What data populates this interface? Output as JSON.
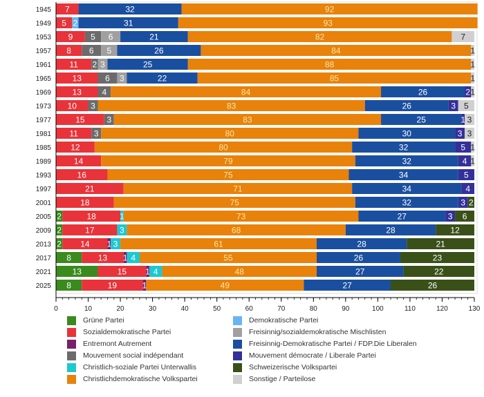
{
  "chart_data": {
    "type": "bar",
    "orientation": "horizontal",
    "stacked": true,
    "title": "",
    "xlabel": "",
    "ylabel": "",
    "xlim": [
      0,
      130
    ],
    "x_ticks": [
      0,
      10,
      20,
      30,
      40,
      50,
      60,
      70,
      80,
      90,
      100,
      110,
      120,
      130
    ],
    "grid": false,
    "legend_position": "bottom",
    "categories": [
      "1945",
      "1949",
      "1953",
      "1957",
      "1961",
      "1965",
      "1969",
      "1973",
      "1977",
      "1981",
      "1985",
      "1989",
      "1993",
      "1997",
      "2001",
      "2005",
      "2009",
      "2013",
      "2017",
      "2021",
      "2025"
    ],
    "series": [
      {
        "name": "Grüne Partei",
        "color": "#3a8a1e",
        "label_color": "#ffffff",
        "values": [
          0,
          0,
          0,
          0,
          0,
          0,
          0,
          0,
          0,
          0,
          0,
          0,
          0,
          0,
          0,
          2,
          2,
          2,
          8,
          13,
          8
        ]
      },
      {
        "name": "Sozialdemokratische Partei",
        "color": "#e8333a",
        "label_color": "#ffffff",
        "values": [
          7,
          5,
          9,
          8,
          11,
          13,
          13,
          10,
          15,
          11,
          12,
          14,
          16,
          21,
          18,
          18,
          17,
          14,
          13,
          15,
          19
        ]
      },
      {
        "name": "Entremont Autrement",
        "color": "#7a1f6a",
        "label_color": "#ffffff",
        "values": [
          0,
          0,
          0,
          0,
          0,
          0,
          0,
          0,
          0,
          0,
          0,
          0,
          0,
          0,
          0,
          0,
          0,
          1,
          1,
          1,
          1
        ]
      },
      {
        "name": "Demokratische Partei",
        "color": "#6bb4f2",
        "label_color": "#ffffff",
        "values": [
          0,
          2,
          0,
          0,
          0,
          0,
          0,
          0,
          0,
          0,
          0,
          0,
          0,
          0,
          0,
          0,
          0,
          0,
          0,
          0,
          0
        ]
      },
      {
        "name": "Mouvement social indépendant",
        "color": "#6b6b6b",
        "label_color": "#ffffff",
        "values": [
          0,
          0,
          5,
          6,
          2,
          6,
          4,
          3,
          3,
          3,
          0,
          0,
          0,
          0,
          0,
          0,
          0,
          0,
          0,
          0,
          0
        ]
      },
      {
        "name": "Freisinnig/sozialdemokratische Mischlisten",
        "color": "#a0a0a0",
        "label_color": "#ffffff",
        "values": [
          0,
          0,
          6,
          5,
          3,
          3,
          0,
          0,
          0,
          0,
          0,
          0,
          0,
          0,
          0,
          0,
          0,
          0,
          0,
          0,
          0
        ]
      },
      {
        "name": "Christlich-soziale Partei Unterwallis",
        "color": "#1ec8d0",
        "label_color": "#ffffff",
        "values": [
          0,
          0,
          0,
          0,
          0,
          0,
          0,
          0,
          0,
          0,
          0,
          0,
          0,
          0,
          0,
          1,
          3,
          3,
          4,
          4,
          0
        ]
      },
      {
        "name": "Freisinnig-Demokratische Partei / FDP.Die Liberalen (links)",
        "color": "#1a4fa0",
        "label_color": "#ffffff",
        "values": [
          32,
          31,
          21,
          26,
          25,
          22,
          0,
          0,
          0,
          0,
          0,
          0,
          0,
          0,
          0,
          0,
          0,
          0,
          0,
          0,
          0
        ]
      },
      {
        "name": "Christlichdemokratische Volkspartei",
        "color": "#e8820a",
        "label_color": "#fbe6a6",
        "values": [
          92,
          93,
          82,
          84,
          88,
          85,
          84,
          83,
          83,
          80,
          80,
          79,
          75,
          71,
          75,
          73,
          68,
          61,
          55,
          48,
          49
        ]
      },
      {
        "name": "Freisinnig-Demokratische Partei / FDP.Die Liberalen",
        "color": "#1a4fa0",
        "label_color": "#ffffff",
        "values": [
          0,
          0,
          0,
          0,
          0,
          0,
          26,
          26,
          25,
          30,
          32,
          32,
          34,
          34,
          32,
          27,
          28,
          28,
          26,
          27,
          27
        ]
      },
      {
        "name": "Mouvement démocrate / Liberale Partei",
        "color": "#33309a",
        "label_color": "#ffffff",
        "values": [
          0,
          0,
          0,
          0,
          0,
          0,
          2,
          3,
          1,
          3,
          5,
          4,
          5,
          4,
          3,
          3,
          0,
          0,
          0,
          0,
          0
        ]
      },
      {
        "name": "Schweizerische Volkspartei",
        "color": "#3a5019",
        "label_color": "#ffffff",
        "values": [
          0,
          0,
          0,
          0,
          0,
          0,
          0,
          0,
          0,
          0,
          0,
          0,
          0,
          0,
          2,
          6,
          12,
          21,
          23,
          22,
          26
        ]
      },
      {
        "name": "Sonstige / Parteilose",
        "color": "#d0d0d0",
        "label_color": "#222222",
        "values": [
          0,
          0,
          7,
          1,
          1,
          1,
          1,
          5,
          3,
          3,
          1,
          1,
          0,
          0,
          0,
          0,
          0,
          0,
          0,
          0,
          0
        ]
      }
    ],
    "legend": [
      {
        "name": "Grüne Partei",
        "color": "#3a8a1e"
      },
      {
        "name": "Sozialdemokratische Partei",
        "color": "#e8333a"
      },
      {
        "name": "Entremont Autrement",
        "color": "#7a1f6a"
      },
      {
        "name": "Mouvement social indépendant",
        "color": "#6b6b6b"
      },
      {
        "name": "Christlich-soziale Partei Unterwallis",
        "color": "#1ec8d0"
      },
      {
        "name": "Christlichdemokratische Volkspartei",
        "color": "#e8820a"
      },
      {
        "name": "Demokratische Partei",
        "color": "#6bb4f2"
      },
      {
        "name": "Freisinnig/sozialdemokratische Mischlisten",
        "color": "#a0a0a0"
      },
      {
        "name": "Freisinnig-Demokratische Partei / FDP.Die Liberalen",
        "color": "#1a4fa0"
      },
      {
        "name": "Mouvement démocrate / Liberale Partei",
        "color": "#33309a"
      },
      {
        "name": "Schweizerische Volkspartei",
        "color": "#3a5019"
      },
      {
        "name": "Sonstige / Parteilose",
        "color": "#d0d0d0"
      }
    ]
  }
}
